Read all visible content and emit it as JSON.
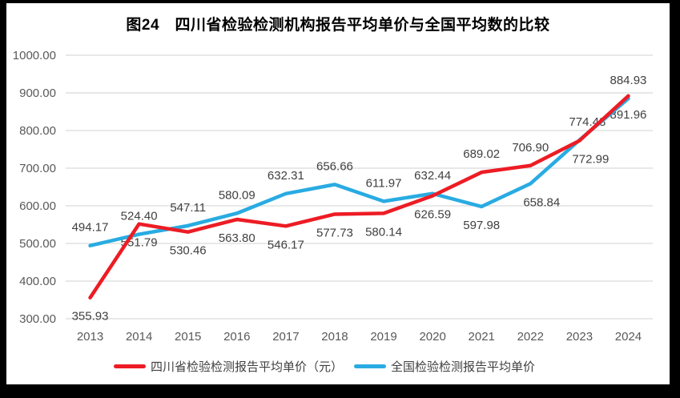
{
  "title": "图24　四川省检验检测机构报告平均单价与全国平均数的比较",
  "chart_data": {
    "type": "line",
    "title": "图24　四川省检验检测机构报告平均单价与全国平均数的比较",
    "categories": [
      "2013",
      "2014",
      "2015",
      "2016",
      "2017",
      "2018",
      "2019",
      "2020",
      "2021",
      "2022",
      "2023",
      "2024"
    ],
    "xlabel": "",
    "ylabel": "",
    "ylim": [
      300,
      1000
    ],
    "grid": true,
    "legend_position": "bottom",
    "y_ticks": [
      {
        "value": 1000,
        "label": "1000.00"
      },
      {
        "value": 900,
        "label": "900.00"
      },
      {
        "value": 800,
        "label": "800.00"
      },
      {
        "value": 700,
        "label": "700.00"
      },
      {
        "value": 600,
        "label": "600.00"
      },
      {
        "value": 500,
        "label": "500.00"
      },
      {
        "value": 400,
        "label": "400.00"
      },
      {
        "value": 300,
        "label": "300.00"
      }
    ],
    "series": [
      {
        "name": "四川省检验检测报告平均单价（元）",
        "color": "#ed1c24",
        "values": [
          355.93,
          551.79,
          530.46,
          563.8,
          546.17,
          577.73,
          580.14,
          626.59,
          689.02,
          706.9,
          772.99,
          891.96
        ],
        "labels": [
          "355.93",
          "551.79",
          "530.46",
          "563.80",
          "546.17",
          "577.73",
          "580.14",
          "626.59",
          "689.02",
          "706.90",
          "772.99",
          "891.96"
        ],
        "label_side": [
          "below",
          "below",
          "below",
          "below",
          "below",
          "below",
          "below",
          "below",
          "above",
          "above",
          "below",
          "below"
        ],
        "label_dx": [
          0,
          0,
          0,
          0,
          0,
          0,
          0,
          0,
          0,
          0,
          14,
          0
        ]
      },
      {
        "name": "全国检验检测报告平均单价",
        "color": "#29abe2",
        "values": [
          494.17,
          524.4,
          547.11,
          580.09,
          632.31,
          656.66,
          611.97,
          632.44,
          597.98,
          658.84,
          774.48,
          884.93
        ],
        "labels": [
          "494.17",
          "524.40",
          "547.11",
          "580.09",
          "632.31",
          "656.66",
          "611.97",
          "632.44",
          "597.98",
          "658.84",
          "774.48",
          "884.93"
        ],
        "label_side": [
          "above",
          "above",
          "above",
          "above",
          "above",
          "above",
          "above",
          "above",
          "below",
          "below",
          "above",
          "above"
        ],
        "label_dx": [
          0,
          0,
          0,
          0,
          0,
          0,
          0,
          0,
          0,
          14,
          10,
          0
        ]
      }
    ],
    "colors": {
      "gridline": "#d9d9d9",
      "axis_text": "#595959",
      "data_label": "#404040",
      "title_text": "#000000",
      "background": "#ffffff",
      "frame": "#000000"
    }
  }
}
